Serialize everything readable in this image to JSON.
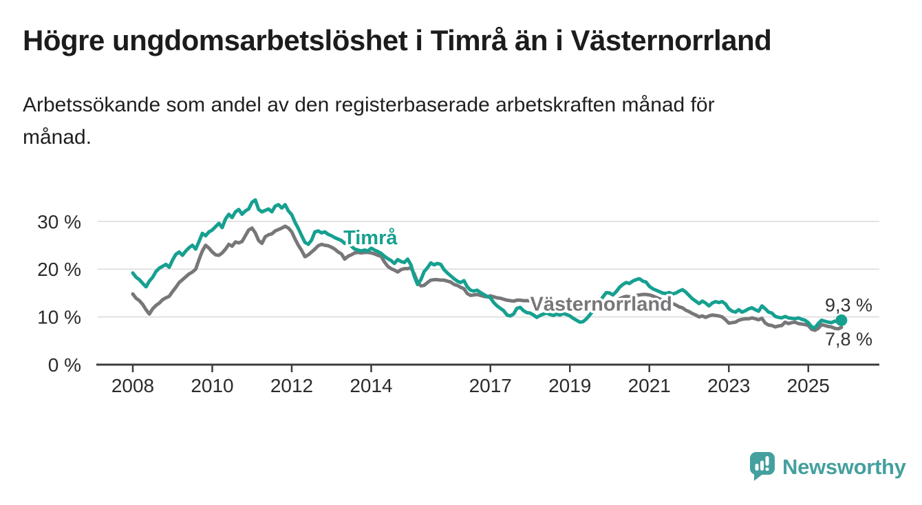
{
  "header": {
    "title": "Högre ungdomsarbetslöshet i Timrå än i Västernorrland",
    "subtitle_line1": "Arbetssökande som andel av den registerbaserade arbetskraften månad för",
    "subtitle_line2": "månad."
  },
  "footer": {
    "brand": "Newsworthy",
    "brand_color": "#44a09e"
  },
  "chart_data": {
    "type": "line",
    "unit": "%",
    "frequency": "monthly",
    "start_year": 2008,
    "end_month": "2025-11",
    "ylim": [
      0,
      35
    ],
    "grid": true,
    "axis_color": "#3d3d3d",
    "grid_color": "#dadada",
    "y_ticks": [
      {
        "value": 0,
        "label": "0 %"
      },
      {
        "value": 10,
        "label": "10 %"
      },
      {
        "value": 20,
        "label": "20 %"
      },
      {
        "value": 30,
        "label": "30 %"
      }
    ],
    "x_ticks": [
      {
        "year": 2008,
        "label": "2008"
      },
      {
        "year": 2010,
        "label": "2010"
      },
      {
        "year": 2012,
        "label": "2012"
      },
      {
        "year": 2014,
        "label": "2014"
      },
      {
        "year": 2017,
        "label": "2017"
      },
      {
        "year": 2019,
        "label": "2019"
      },
      {
        "year": 2021,
        "label": "2021"
      },
      {
        "year": 2023,
        "label": "2023"
      },
      {
        "year": 2025,
        "label": "2025"
      }
    ],
    "series": [
      {
        "name": "Timrå",
        "color": "#16a090",
        "values_by_year": [
          [
            19.2,
            18.3,
            17.8,
            17.0,
            16.3,
            17.5,
            18.3,
            19.5,
            20.2,
            20.6,
            21.0,
            20.4
          ],
          [
            21.9,
            23.1,
            23.6,
            22.9,
            23.8,
            24.5,
            25.0,
            24.2,
            25.8,
            27.5,
            27.0,
            27.8
          ],
          [
            28.2,
            28.9,
            29.6,
            28.7,
            30.5,
            31.5,
            30.8,
            32.0,
            32.5,
            31.5,
            32.2,
            32.6
          ],
          [
            34.0,
            34.5,
            32.5,
            32.0,
            32.3,
            32.6,
            32.0,
            33.2,
            33.5,
            32.8,
            33.5,
            32.2
          ],
          [
            31.4,
            29.8,
            28.5,
            27.0,
            25.6,
            25.2,
            26.1,
            27.8,
            28.0,
            27.6,
            27.8,
            27.3
          ],
          [
            27.0,
            26.6,
            26.3,
            26.0,
            25.4,
            25.8,
            24.8,
            24.2,
            24.0,
            23.8,
            24.0,
            23.8
          ],
          [
            24.4,
            24.0,
            23.7,
            23.3,
            22.7,
            22.2,
            21.8,
            21.2,
            22.0,
            21.6,
            21.4,
            22.1
          ],
          [
            20.9,
            18.5,
            16.8,
            17.8,
            19.5,
            20.3,
            21.3,
            20.9,
            21.2,
            21.0,
            19.9,
            19.2
          ],
          [
            18.6,
            18.0,
            17.5,
            17.2,
            17.6,
            16.3,
            15.6,
            15.4,
            15.6,
            15.1,
            14.7,
            14.3
          ],
          [
            14.0,
            13.0,
            12.3,
            11.8,
            11.3,
            10.4,
            10.2,
            10.6,
            11.8,
            12.0,
            11.3,
            10.9
          ],
          [
            10.8,
            10.4,
            9.9,
            10.3,
            10.6,
            10.8,
            10.5,
            10.3,
            10.6,
            10.4,
            10.7,
            10.5
          ],
          [
            10.2,
            9.7,
            9.3,
            8.9,
            9.0,
            9.6,
            10.4,
            11.3,
            12.2,
            13.2,
            14.2,
            15.1
          ],
          [
            15.0,
            14.6,
            15.3,
            16.2,
            16.8,
            17.2,
            17.0,
            17.5,
            17.8,
            18.0,
            17.5,
            17.3
          ],
          [
            16.4,
            15.9,
            15.6,
            15.3,
            15.0,
            14.9,
            15.1,
            14.8,
            15.0,
            15.4,
            15.7,
            15.2
          ],
          [
            14.5,
            13.8,
            13.3,
            12.8,
            13.3,
            12.9,
            12.3,
            12.9,
            13.2,
            13.0,
            13.2,
            12.7
          ],
          [
            11.7,
            11.2,
            11.0,
            11.5,
            11.0,
            11.3,
            11.7,
            11.9,
            11.5,
            11.2,
            12.3,
            11.7
          ],
          [
            11.0,
            10.8,
            10.1,
            9.9,
            9.8,
            10.1,
            9.8,
            9.7,
            9.6,
            9.8,
            9.5,
            9.3
          ],
          [
            8.8,
            7.9,
            7.7,
            8.6,
            9.3,
            9.1,
            8.9,
            8.8,
            9.1,
            9.0,
            9.3
          ]
        ]
      },
      {
        "name": "Västernorrland",
        "color": "#77777a",
        "values_by_year": [
          [
            14.8,
            13.9,
            13.4,
            12.6,
            11.5,
            10.6,
            11.7,
            12.4,
            12.9,
            13.6,
            14.0,
            14.3
          ],
          [
            15.3,
            16.2,
            17.2,
            17.8,
            18.4,
            19.0,
            19.4,
            20.0,
            22.0,
            23.8,
            25.0,
            24.4
          ],
          [
            23.6,
            23.0,
            22.9,
            23.4,
            24.2,
            25.2,
            24.8,
            25.7,
            25.5,
            25.8,
            27.0,
            28.2
          ],
          [
            28.6,
            27.6,
            26.0,
            25.4,
            26.8,
            27.2,
            27.4,
            28.0,
            28.3,
            28.6,
            29.0,
            28.6
          ],
          [
            27.8,
            26.3,
            25.0,
            23.9,
            22.6,
            23.0,
            23.6,
            24.2,
            24.9,
            25.2,
            25.0,
            24.9
          ],
          [
            24.6,
            24.2,
            23.6,
            23.2,
            22.1,
            22.7,
            23.0,
            23.4,
            23.5,
            23.4,
            23.5,
            23.5
          ],
          [
            23.4,
            23.2,
            22.9,
            22.7,
            21.5,
            20.6,
            20.1,
            19.8,
            19.4,
            19.9,
            20.1,
            20.1
          ],
          [
            20.3,
            19.0,
            17.2,
            16.5,
            16.6,
            17.2,
            17.7,
            17.8,
            17.8,
            17.7,
            17.7,
            17.5
          ],
          [
            17.3,
            16.8,
            16.6,
            16.2,
            15.9,
            14.9,
            14.5,
            14.6,
            14.7,
            14.5,
            14.3,
            14.2
          ],
          [
            14.4,
            14.2,
            14.0,
            13.9,
            13.7,
            13.5,
            13.4,
            13.3,
            13.5,
            13.5,
            13.4,
            13.4
          ],
          [
            13.4,
            13.3,
            13.2,
            13.2,
            13.1,
            13.0,
            12.9,
            12.9,
            12.9,
            12.8,
            12.8,
            12.7
          ],
          [
            12.7,
            12.6,
            12.5,
            12.4,
            12.4,
            12.5,
            12.5,
            12.5,
            12.5,
            12.5,
            12.5,
            12.6
          ],
          [
            12.7,
            12.8,
            13.2,
            13.8,
            14.1,
            14.3,
            14.2,
            14.4,
            14.5,
            14.6,
            14.7,
            14.7
          ],
          [
            14.6,
            14.4,
            14.1,
            13.8,
            13.5,
            13.3,
            13.0,
            12.8,
            12.5,
            12.1,
            11.9,
            11.4
          ],
          [
            11.1,
            10.7,
            10.4,
            10.0,
            10.2,
            9.9,
            10.2,
            10.4,
            10.3,
            10.2,
            10.0,
            9.4
          ],
          [
            8.7,
            8.8,
            8.9,
            9.3,
            9.5,
            9.6,
            9.6,
            9.8,
            9.6,
            9.4,
            9.7,
            8.7
          ],
          [
            8.3,
            8.2,
            7.9,
            8.1,
            8.2,
            8.9,
            8.6,
            8.8,
            8.9,
            8.6,
            8.5,
            8.4
          ],
          [
            8.2,
            7.4,
            7.2,
            7.6,
            8.4,
            8.2,
            8.0,
            7.9,
            7.6,
            7.5,
            7.8
          ]
        ]
      }
    ],
    "end_dot": {
      "series": "Timrå",
      "radius": 8.5
    },
    "annotations": [
      {
        "text": "Timrå",
        "x_year": 2013.3,
        "y_value": 25.2,
        "color": "#16a090",
        "bold": true,
        "size": 29
      },
      {
        "text": "Västernorrland",
        "x_year": 2018.0,
        "y_value": 11.3,
        "color": "#77777a",
        "bold": true,
        "size": 29
      },
      {
        "text": "9,3 %",
        "x_year": 2025.42,
        "y_value": 11.2,
        "color": "#333333",
        "bold": false,
        "size": 27
      },
      {
        "text": "7,8 %",
        "x_year": 2025.42,
        "y_value": 4.0,
        "color": "#333333",
        "bold": false,
        "size": 27
      }
    ]
  }
}
